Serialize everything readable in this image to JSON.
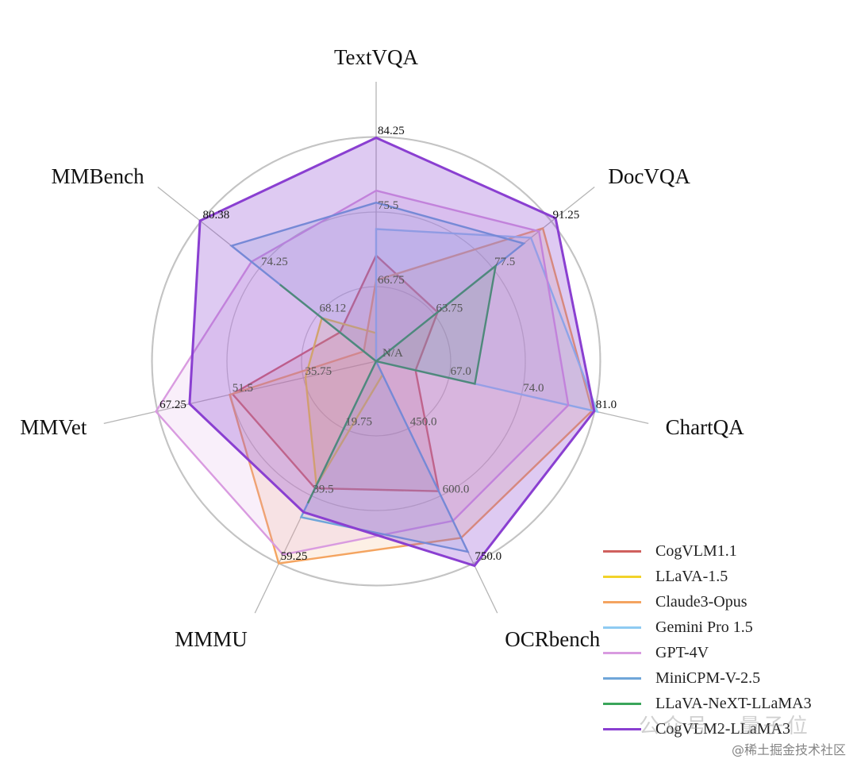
{
  "chart_data": {
    "type": "radar",
    "axes": [
      "TextVQA",
      "DocVQA",
      "ChartQA",
      "OCRbench",
      "MMMU",
      "MMVet",
      "MMBench"
    ],
    "axis_ranges": [
      {
        "min": 58,
        "max": 84.25,
        "ticks": [
          {
            "label": "66.75",
            "r": 1
          },
          {
            "label": "75.5",
            "r": 2
          },
          {
            "label": "84.25",
            "r": 3
          }
        ]
      },
      {
        "min": 50,
        "max": 91.25,
        "ticks": [
          {
            "label": "63.75",
            "r": 1
          },
          {
            "label": "77.5",
            "r": 2
          },
          {
            "label": "91.25",
            "r": 3
          }
        ]
      },
      {
        "min": 60,
        "max": 81.0,
        "ticks": [
          {
            "label": "67.0",
            "r": 1
          },
          {
            "label": "74.0",
            "r": 2
          },
          {
            "label": "81.0",
            "r": 3
          }
        ]
      },
      {
        "min": 300,
        "max": 750,
        "ticks": [
          {
            "label": "450.0",
            "r": 1
          },
          {
            "label": "600.0",
            "r": 2
          },
          {
            "label": "750.0",
            "r": 3
          }
        ]
      },
      {
        "min": 0,
        "max": 59.25,
        "ticks": [
          {
            "label": "19.75",
            "r": 1
          },
          {
            "label": "39.5",
            "r": 2
          },
          {
            "label": "59.25",
            "r": 3
          }
        ]
      },
      {
        "min": 20,
        "max": 67.25,
        "ticks": [
          {
            "label": "35.75",
            "r": 1
          },
          {
            "label": "51.5",
            "r": 2
          },
          {
            "label": "67.25",
            "r": 3
          }
        ]
      },
      {
        "min": 62,
        "max": 80.38,
        "ticks": [
          {
            "label": "68.12",
            "r": 1
          },
          {
            "label": "74.25",
            "r": 2
          },
          {
            "label": "80.38",
            "r": 3
          }
        ]
      }
    ],
    "center_label": "N/A",
    "series": [
      {
        "name": "CogVLM1.1",
        "color": "#d0605e",
        "values": [
          70.4,
          64.5,
          63.8,
          590,
          37.3,
          51.1,
          65.8
        ]
      },
      {
        "name": "LLaVA-1.5",
        "color": "#f2d32a",
        "values": [
          61.3,
          0,
          0,
          330,
          36.4,
          35.3,
          67.7
        ]
      },
      {
        "name": "Claude3-Opus",
        "color": "#f4a460",
        "values": [
          67.5,
          89.3,
          80.8,
          694,
          59.4,
          51.7,
          63.3
        ]
      },
      {
        "name": "Gemini Pro 1.5",
        "color": "#8fcbf2",
        "values": [
          73.5,
          86.5,
          81.3,
          0,
          0,
          0,
          0
        ]
      },
      {
        "name": "GPT-4V",
        "color": "#d99be0",
        "values": [
          78.0,
          88.4,
          78.5,
          656,
          56.8,
          67.7,
          75.1
        ]
      },
      {
        "name": "MiniCPM-V-2.5",
        "color": "#6fa6d9",
        "values": [
          76.6,
          84.8,
          0,
          725,
          45.8,
          0,
          77.2
        ]
      },
      {
        "name": "LLaVA-NeXT-LLaMA3",
        "color": "#3aa55a",
        "values": [
          0,
          78.2,
          69.5,
          0,
          41.7,
          0,
          72.1
        ]
      },
      {
        "name": "CogVLM2-LLaMA3",
        "color": "#8a3fd1",
        "values": [
          84.2,
          92.3,
          81.0,
          756,
          44.3,
          60.4,
          80.5
        ]
      }
    ]
  },
  "watermark": {
    "account": "公众号 · 量子位",
    "site": "@稀土掘金技术社区"
  }
}
